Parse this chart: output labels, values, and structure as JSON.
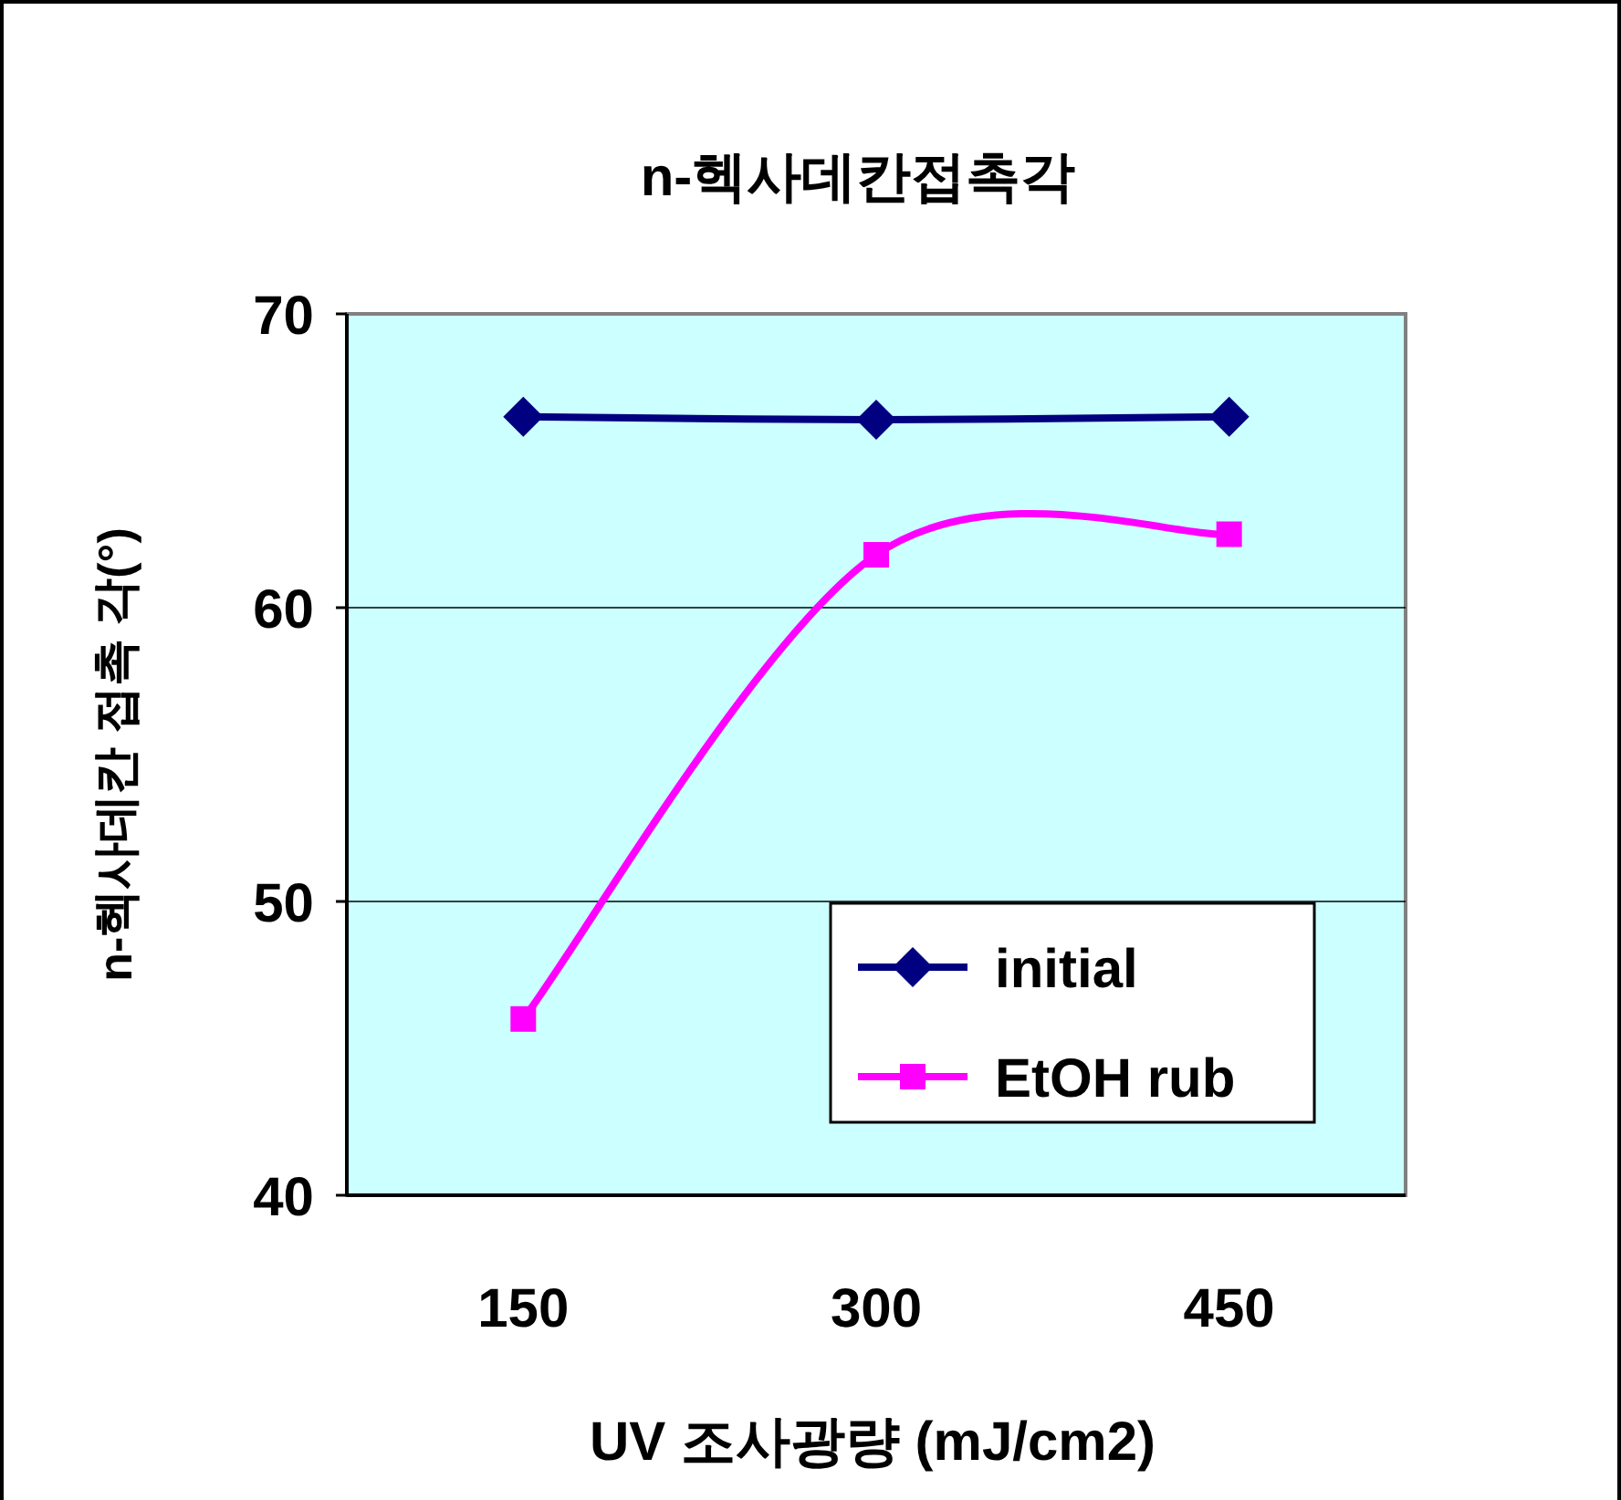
{
  "chart_data": {
    "type": "line",
    "title": "n-헥사데칸접촉각",
    "xlabel": "UV 조사광량 (mJ/cm2)",
    "ylabel": "n-헥사데칸 접촉 각(°)",
    "categories": [
      "150",
      "300",
      "450"
    ],
    "series": [
      {
        "name": "initial",
        "color": "#000080",
        "marker": "diamond",
        "values": [
          66.5,
          66.4,
          66.5
        ]
      },
      {
        "name": "EtOH rub",
        "color": "#ff00ff",
        "marker": "square",
        "values": [
          46,
          61.8,
          62.5
        ]
      }
    ],
    "ylim": [
      40,
      70
    ],
    "yticks": [
      40,
      50,
      60,
      70
    ],
    "grid": "y",
    "legend": "bottom right"
  }
}
